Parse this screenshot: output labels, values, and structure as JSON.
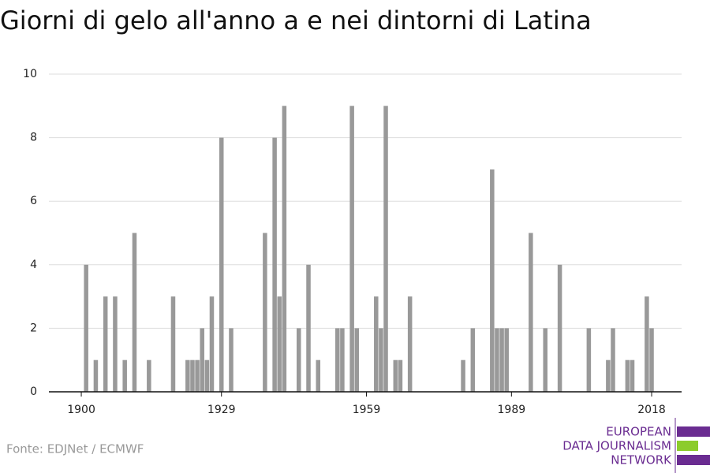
{
  "chart_data": {
    "type": "bar",
    "title": "Giorni di gelo all'anno a e nei dintorni di Latina",
    "source": "Fonte: EDJNet / ECMWF",
    "logo": [
      "EUROPEAN",
      "DATA JOURNALISM",
      "NETWORK"
    ],
    "x": [
      1901,
      1903,
      1905,
      1907,
      1909,
      1911,
      1914,
      1919,
      1922,
      1923,
      1924,
      1925,
      1926,
      1927,
      1929,
      1931,
      1938,
      1940,
      1941,
      1942,
      1945,
      1947,
      1949,
      1953,
      1954,
      1956,
      1957,
      1961,
      1962,
      1963,
      1965,
      1966,
      1968,
      1979,
      1981,
      1985,
      1986,
      1987,
      1988,
      1993,
      1996,
      1999,
      2005,
      2009,
      2010,
      2013,
      2014,
      2017,
      2018
    ],
    "values": [
      4,
      1,
      3,
      3,
      1,
      5,
      1,
      3,
      1,
      1,
      1,
      2,
      1,
      3,
      8,
      2,
      5,
      8,
      3,
      9,
      2,
      4,
      1,
      2,
      2,
      9,
      2,
      3,
      2,
      9,
      1,
      1,
      3,
      1,
      2,
      7,
      2,
      2,
      2,
      5,
      2,
      4,
      2,
      1,
      2,
      1,
      1,
      3,
      2
    ],
    "color": "#999999",
    "xlim": [
      1893.3,
      2024.2
    ],
    "xticks": [
      1900,
      1929,
      1959,
      1989,
      2018
    ],
    "ylim": [
      0,
      10
    ],
    "yticks": [
      0,
      2,
      4,
      6,
      8,
      10
    ],
    "grid": true
  }
}
